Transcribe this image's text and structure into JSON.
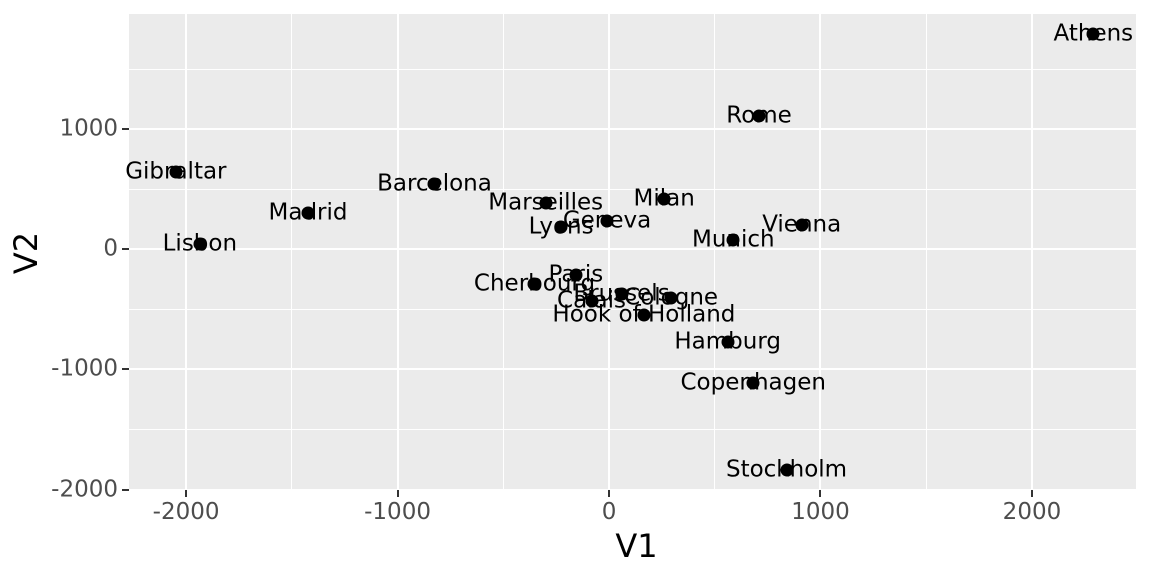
{
  "chart_data": {
    "type": "scatter",
    "title": "",
    "xlabel": "V1",
    "ylabel": "V2",
    "legend": "none",
    "grid": "on",
    "panel_style": "ggplot-grey",
    "xlim": [
      -2270,
      2492
    ],
    "ylim": [
      -2004,
      1962
    ],
    "x_major_ticks": [
      {
        "value": -2000,
        "label": "-2000"
      },
      {
        "value": -1000,
        "label": "-1000"
      },
      {
        "value": 0,
        "label": "0"
      },
      {
        "value": 1000,
        "label": "1000"
      },
      {
        "value": 2000,
        "label": "2000"
      }
    ],
    "y_major_ticks": [
      {
        "value": 1000,
        "label": "1000"
      },
      {
        "value": 0,
        "label": "0"
      },
      {
        "value": -1000,
        "label": "-1000"
      },
      {
        "value": -2000,
        "label": "-2000"
      }
    ],
    "x_minor_ticks": [
      -1500,
      -500,
      500,
      1500
    ],
    "y_minor_ticks": [
      1500,
      500,
      -500,
      -1500
    ],
    "points": [
      {
        "label": "Athens",
        "x": 2290.3,
        "y": 1798.8
      },
      {
        "label": "Barcelona",
        "x": -825.4,
        "y": 546.8
      },
      {
        "label": "Brussels",
        "x": 59.2,
        "y": -367.1
      },
      {
        "label": "Calais",
        "x": -82.8,
        "y": -429.9
      },
      {
        "label": "Cherbourg",
        "x": -352.5,
        "y": -290.9
      },
      {
        "label": "Cologne",
        "x": 293.7,
        "y": -405.3
      },
      {
        "label": "Copenhagen",
        "x": 681.9,
        "y": -1108.6
      },
      {
        "label": "Geneva",
        "x": -9.4,
        "y": 240.4
      },
      {
        "label": "Gibraltar",
        "x": -2048.4,
        "y": 642.5
      },
      {
        "label": "Hamburg",
        "x": 561.1,
        "y": -773.4
      },
      {
        "label": "Hook of Holland",
        "x": 164.9,
        "y": -549.4
      },
      {
        "label": "Lisbon",
        "x": -1935.0,
        "y": 49.1
      },
      {
        "label": "Lyons",
        "x": -226.4,
        "y": 187.1
      },
      {
        "label": "Madrid",
        "x": -1423.4,
        "y": 305.9
      },
      {
        "label": "Marseilles",
        "x": -299.5,
        "y": 388.8
      },
      {
        "label": "Milan",
        "x": 260.9,
        "y": 416.7
      },
      {
        "label": "Munich",
        "x": 587.7,
        "y": 81.2
      },
      {
        "label": "Paris",
        "x": -156.8,
        "y": -211.1
      },
      {
        "label": "Rome",
        "x": 709.4,
        "y": 1109.4
      },
      {
        "label": "Stockholm",
        "x": 839.4,
        "y": -1836.8
      },
      {
        "label": "Vienna",
        "x": 911.2,
        "y": 205.9
      }
    ]
  },
  "colors": {
    "figure_bg": "#ffffff",
    "panel_bg": "#ebebeb",
    "gridline": "#ffffff",
    "tick_mark": "#333333",
    "tick_text": "#4d4d4d",
    "axis_title": "#000000",
    "point": "#000000",
    "point_label": "#000000"
  }
}
